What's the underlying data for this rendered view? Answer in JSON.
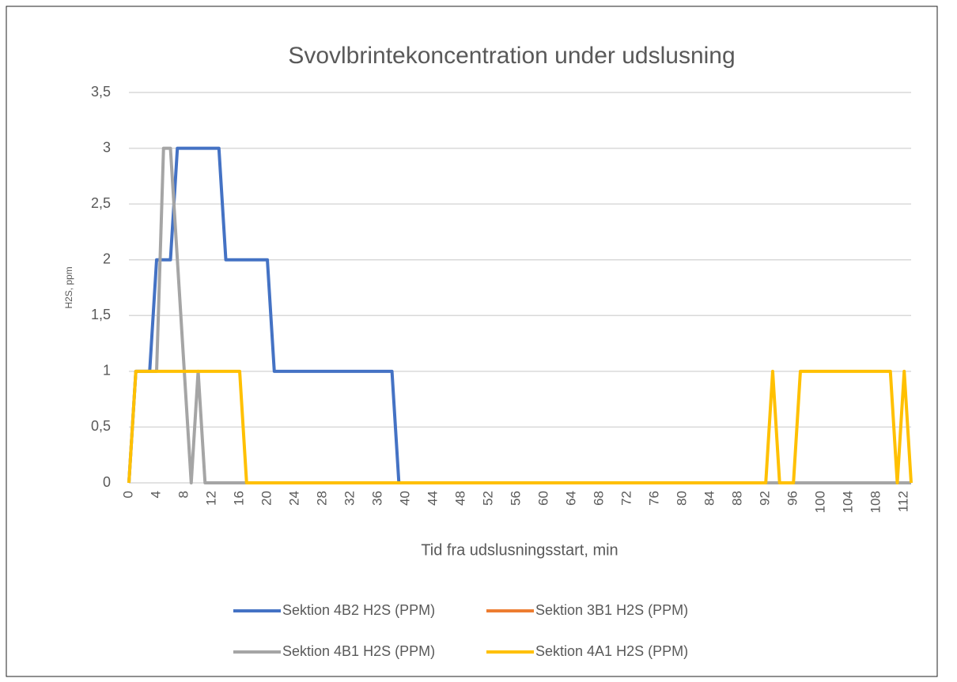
{
  "chart_data": {
    "type": "line",
    "title": "Svovlbrintekoncentration under udslusning",
    "x_label": "Tid fra udslusningsstart, min",
    "y_label": "H2S, ppm",
    "x": [
      0,
      1,
      2,
      3,
      4,
      5,
      6,
      7,
      8,
      9,
      10,
      11,
      12,
      13,
      14,
      15,
      16,
      17,
      18,
      19,
      20,
      21,
      22,
      23,
      24,
      25,
      26,
      27,
      28,
      29,
      30,
      31,
      32,
      33,
      34,
      35,
      36,
      37,
      38,
      39,
      40,
      41,
      42,
      43,
      44,
      45,
      46,
      47,
      48,
      49,
      50,
      51,
      52,
      53,
      54,
      55,
      56,
      57,
      58,
      59,
      60,
      61,
      62,
      63,
      64,
      65,
      66,
      67,
      68,
      69,
      70,
      71,
      72,
      73,
      74,
      75,
      76,
      77,
      78,
      79,
      80,
      81,
      82,
      83,
      84,
      85,
      86,
      87,
      88,
      89,
      90,
      91,
      92,
      93,
      94,
      95,
      96,
      97,
      98,
      99,
      100,
      101,
      102,
      103,
      104,
      105,
      106,
      107,
      108,
      109,
      110,
      111,
      112,
      113
    ],
    "series": [
      {
        "name": "Sektion 4B2 H2S (PPM)",
        "color": "#4472c4",
        "values": [
          0,
          1,
          1,
          1,
          2,
          2,
          2,
          3,
          3,
          3,
          3,
          3,
          3,
          3,
          2,
          2,
          2,
          2,
          2,
          2,
          2,
          1,
          1,
          1,
          1,
          1,
          1,
          1,
          1,
          1,
          1,
          1,
          1,
          1,
          1,
          1,
          1,
          1,
          1,
          0,
          0,
          0,
          0,
          0,
          0,
          0,
          0,
          0,
          0,
          0,
          0,
          0,
          0,
          0,
          0,
          0,
          0,
          0,
          0,
          0,
          0,
          0,
          0,
          0,
          0,
          0,
          0,
          0,
          0,
          0,
          0,
          0,
          0,
          0,
          0,
          0,
          0,
          0,
          0,
          0,
          0,
          0,
          0,
          0,
          0,
          0,
          0,
          0,
          0,
          0,
          0,
          0,
          0,
          0,
          0,
          0,
          0,
          0,
          0,
          0,
          0,
          0,
          0,
          0,
          0,
          0,
          0,
          0,
          0,
          0,
          0,
          0,
          0,
          0
        ]
      },
      {
        "name": "Sektion 3B1 H2S (PPM)",
        "color": "#ed7d31",
        "values": [
          null,
          null,
          null,
          null,
          null,
          null,
          null,
          null,
          null,
          null,
          null,
          null,
          null,
          null,
          null,
          null,
          null,
          null,
          null,
          null,
          null,
          null,
          null,
          null,
          null,
          null,
          null,
          null,
          null,
          null,
          null,
          null,
          null,
          null,
          null,
          null,
          null,
          null,
          null,
          null,
          null,
          null,
          null,
          null,
          null,
          null,
          null,
          null,
          null,
          null,
          null,
          null,
          null,
          null,
          null,
          null,
          null,
          null,
          null,
          null,
          null,
          null,
          null,
          null,
          null,
          null,
          null,
          null,
          null,
          null,
          null,
          null,
          null,
          null,
          null,
          null,
          null,
          null,
          null,
          null,
          null,
          null,
          null,
          null,
          null,
          null,
          null,
          null,
          null,
          null,
          null,
          null,
          null,
          null,
          null,
          null,
          null,
          null,
          null,
          null,
          null,
          null,
          null,
          null,
          null,
          null,
          null,
          null,
          null,
          null,
          null,
          null,
          null,
          null
        ]
      },
      {
        "name": "Sektion 4B1 H2S (PPM)",
        "color": "#a5a5a5",
        "values": [
          0,
          1,
          1,
          1,
          1,
          3,
          3,
          2,
          1,
          0,
          1,
          0,
          0,
          0,
          0,
          0,
          0,
          0,
          0,
          0,
          0,
          0,
          0,
          0,
          0,
          0,
          0,
          0,
          0,
          0,
          0,
          0,
          0,
          0,
          0,
          0,
          0,
          0,
          0,
          0,
          0,
          0,
          0,
          0,
          0,
          0,
          0,
          0,
          0,
          0,
          0,
          0,
          0,
          0,
          0,
          0,
          0,
          0,
          0,
          0,
          0,
          0,
          0,
          0,
          0,
          0,
          0,
          0,
          0,
          0,
          0,
          0,
          0,
          0,
          0,
          0,
          0,
          0,
          0,
          0,
          0,
          0,
          0,
          0,
          0,
          0,
          0,
          0,
          0,
          0,
          0,
          0,
          0,
          0,
          0,
          0,
          0,
          0,
          0,
          0,
          0,
          0,
          0,
          0,
          0,
          0,
          0,
          0,
          0,
          0,
          0,
          0,
          0,
          0
        ]
      },
      {
        "name": "Sektion 4A1 H2S (PPM)",
        "color": "#ffc000",
        "values": [
          0,
          1,
          1,
          1,
          1,
          1,
          1,
          1,
          1,
          1,
          1,
          1,
          1,
          1,
          1,
          1,
          1,
          0,
          0,
          0,
          0,
          0,
          0,
          0,
          0,
          0,
          0,
          0,
          0,
          0,
          0,
          0,
          0,
          0,
          0,
          0,
          0,
          0,
          0,
          0,
          0,
          0,
          0,
          0,
          0,
          0,
          0,
          0,
          0,
          0,
          0,
          0,
          0,
          0,
          0,
          0,
          0,
          0,
          0,
          0,
          0,
          0,
          0,
          0,
          0,
          0,
          0,
          0,
          0,
          0,
          0,
          0,
          0,
          0,
          0,
          0,
          0,
          0,
          0,
          0,
          0,
          0,
          0,
          0,
          0,
          0,
          0,
          0,
          0,
          0,
          0,
          0,
          0,
          1,
          0,
          0,
          0,
          1,
          1,
          1,
          1,
          1,
          1,
          1,
          1,
          1,
          1,
          1,
          1,
          1,
          1,
          0,
          1,
          0
        ]
      }
    ],
    "xlim": [
      0,
      113
    ],
    "xticks": [
      0,
      4,
      8,
      12,
      16,
      20,
      24,
      28,
      32,
      36,
      40,
      44,
      48,
      52,
      56,
      60,
      64,
      68,
      72,
      76,
      80,
      84,
      88,
      92,
      96,
      100,
      104,
      108,
      112
    ],
    "ylim": [
      0,
      3.5
    ],
    "yticks": [
      0,
      {
        "value": 0.5,
        "label": "0,5"
      },
      1,
      {
        "value": 1.5,
        "label": "1,5"
      },
      2,
      {
        "value": 2.5,
        "label": "2,5"
      },
      3,
      {
        "value": 3.5,
        "label": "3,5"
      }
    ],
    "grid": true,
    "legend": "bottom"
  }
}
